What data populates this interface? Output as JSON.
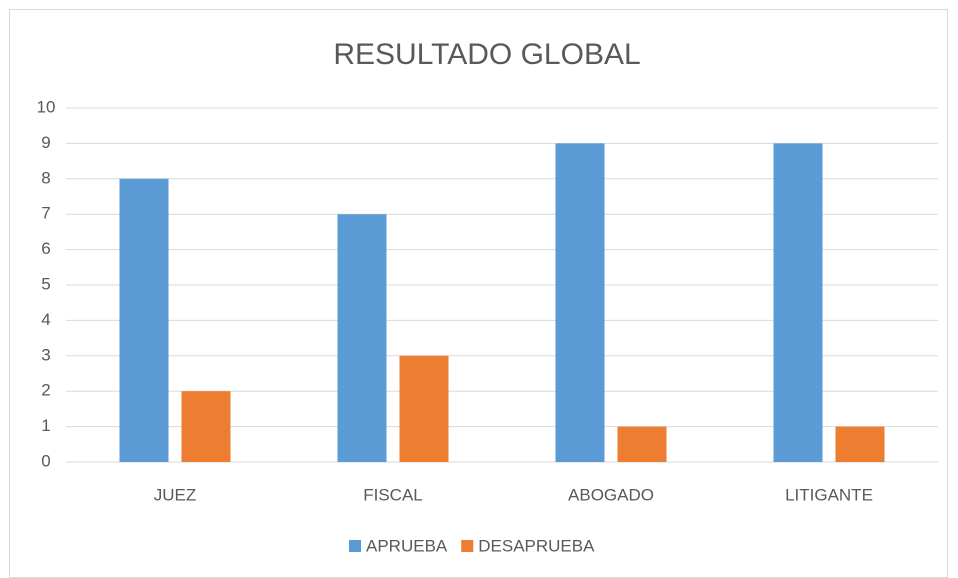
{
  "chart_data": {
    "type": "bar",
    "title": "RESULTADO GLOBAL",
    "categories": [
      "JUEZ",
      "FISCAL",
      "ABOGADO",
      "LITIGANTE"
    ],
    "series": [
      {
        "name": "APRUEBA",
        "color": "#5b9bd5",
        "values": [
          8,
          7,
          9,
          9
        ]
      },
      {
        "name": "DESAPRUEBA",
        "color": "#ed7d31",
        "values": [
          2,
          3,
          1,
          1
        ]
      }
    ],
    "ylim": [
      0,
      10
    ],
    "yticks": [
      0,
      1,
      2,
      3,
      4,
      5,
      6,
      7,
      8,
      9,
      10
    ],
    "grid": true,
    "legend": "bottom"
  }
}
